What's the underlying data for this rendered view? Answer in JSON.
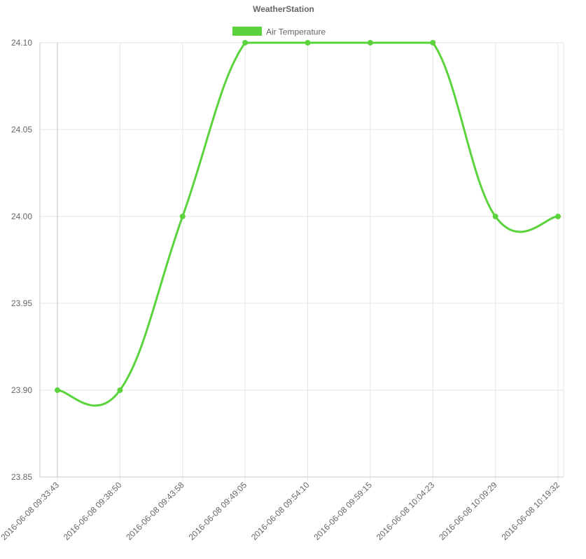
{
  "chart_data": {
    "type": "line",
    "title": "WeatherStation",
    "categories": [
      "2016-06-08 09:33:43",
      "2016-06-08 09:38:50",
      "2016-06-08 09:43:58",
      "2016-06-08 09:49:05",
      "2016-06-08 09:54:10",
      "2016-06-08 09:59:15",
      "2016-06-08 10:04:23",
      "2016-06-08 10:09:29",
      "2016-06-08 10:19:32"
    ],
    "series": [
      {
        "name": "Air Temperature",
        "color": "#5bd33c",
        "values": [
          23.9,
          23.9,
          24.0,
          24.1,
          24.1,
          24.1,
          24.1,
          24.0,
          24.0
        ]
      }
    ],
    "ylim": [
      23.85,
      24.1
    ],
    "yticks": [
      "24.10",
      "24.05",
      "24.00",
      "23.95",
      "23.90",
      "23.85"
    ],
    "xlabel": "",
    "ylabel": "",
    "grid": true,
    "legend_position": "top-center"
  }
}
